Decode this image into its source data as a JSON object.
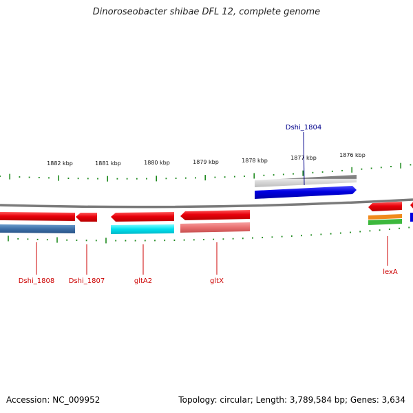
{
  "title": "Dinoroseobacter shibae DFL 12, complete genome",
  "footer": {
    "accession": "Accession: NC_009952",
    "summary": "Topology: circular; Length: 3,789,584 bp; Genes: 3,634"
  },
  "scale": {
    "labels": [
      "1882 kbp",
      "1881 kbp",
      "1880 kbp",
      "1879 kbp",
      "1878 kbp",
      "1877 kbp",
      "1876 kbp"
    ]
  },
  "genes": {
    "forward_label": "Dshi_1804",
    "reverse_labels": [
      "Dshi_1808",
      "Dshi_1807",
      "gltA2",
      "gltX",
      "lexA"
    ]
  },
  "colors": {
    "reverse_gene": "#e8000b",
    "forward_gene": "#0000e0",
    "forward_label": "#00008b",
    "reverse_label": "#cc0000",
    "tick": "#1e8a1e",
    "backbone": "#7a7a7a"
  }
}
